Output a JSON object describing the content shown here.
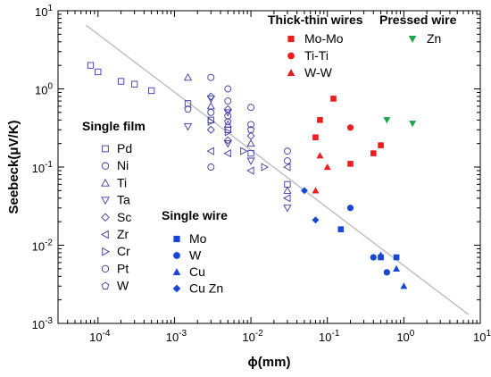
{
  "chart_data": {
    "type": "scatter",
    "xlabel": "ϕ(mm)",
    "ylabel": "Seebeck(μV/K)",
    "xscale": "log",
    "yscale": "log",
    "xlim": [
      3e-05,
      10
    ],
    "ylim": [
      0.001,
      10
    ],
    "x_ticks": [
      {
        "v": 0.0001,
        "m": "10",
        "e": "-4"
      },
      {
        "v": 0.001,
        "m": "10",
        "e": "-3"
      },
      {
        "v": 0.01,
        "m": "10",
        "e": "-2"
      },
      {
        "v": 0.1,
        "m": "10",
        "e": "-1"
      },
      {
        "v": 1,
        "m": "10",
        "e": "0"
      },
      {
        "v": 10,
        "m": "10",
        "e": "1"
      }
    ],
    "y_ticks": [
      {
        "v": 0.001,
        "m": "10",
        "e": "-3"
      },
      {
        "v": 0.01,
        "m": "10",
        "e": "-2"
      },
      {
        "v": 0.1,
        "m": "10",
        "e": "-1"
      },
      {
        "v": 1,
        "m": "10",
        "e": "0"
      },
      {
        "v": 10,
        "m": "10",
        "e": "1"
      }
    ],
    "grid": false,
    "trend_line": {
      "color": "#bdbdbd",
      "points": [
        [
          7e-05,
          6.5
        ],
        [
          7,
          0.0013
        ]
      ]
    },
    "legend_groups": [
      {
        "title": "Single film",
        "placement": "middle-left",
        "entries": [
          "Pd",
          "Ni",
          "Ti",
          "Ta",
          "Sc",
          "Zr",
          "Cr",
          "Pt",
          "W"
        ]
      },
      {
        "title": "Single wire",
        "placement": "lower-middle",
        "entries": [
          "Mo",
          "W",
          "Cu",
          "Cu Zn"
        ]
      },
      {
        "title": "Thick-thin wires",
        "placement": "top-middle",
        "entries": [
          "Mo-Mo",
          "Ti-Ti",
          "W-W"
        ]
      },
      {
        "title": "Pressed wire",
        "placement": "top-right",
        "entries": [
          "Zn"
        ]
      }
    ],
    "series": [
      {
        "name": "Pd",
        "group": "Single film",
        "marker": "square",
        "filled": false,
        "color": "#3a3aa8",
        "points": [
          [
            8e-05,
            2.0
          ],
          [
            0.0001,
            1.65
          ],
          [
            0.0002,
            1.25
          ],
          [
            0.0003,
            1.15
          ],
          [
            0.0005,
            0.95
          ],
          [
            0.0015,
            0.65
          ],
          [
            0.003,
            0.4
          ],
          [
            0.005,
            0.3
          ],
          [
            0.01,
            0.15
          ],
          [
            0.03,
            0.06
          ]
        ]
      },
      {
        "name": "Ni",
        "group": "Single film",
        "marker": "circle",
        "filled": false,
        "color": "#3a3aa8",
        "points": [
          [
            0.003,
            1.4
          ],
          [
            0.005,
            1.0
          ],
          [
            0.003,
            0.5
          ],
          [
            0.005,
            0.45
          ],
          [
            0.01,
            0.58
          ],
          [
            0.003,
            0.1
          ],
          [
            0.03,
            0.16
          ]
        ]
      },
      {
        "name": "Ti",
        "group": "Single film",
        "marker": "triangle-up",
        "filled": false,
        "color": "#3a3aa8",
        "points": [
          [
            0.0015,
            1.4
          ],
          [
            0.003,
            0.6
          ],
          [
            0.005,
            0.35
          ],
          [
            0.01,
            0.2
          ],
          [
            0.03,
            0.05
          ]
        ]
      },
      {
        "name": "Ta",
        "group": "Single film",
        "marker": "triangle-down",
        "filled": false,
        "color": "#3a3aa8",
        "points": [
          [
            0.003,
            0.75
          ],
          [
            0.005,
            0.5
          ],
          [
            0.0015,
            0.33
          ],
          [
            0.005,
            0.2
          ],
          [
            0.01,
            0.12
          ],
          [
            0.03,
            0.03
          ]
        ]
      },
      {
        "name": "Sc",
        "group": "Single film",
        "marker": "diamond",
        "filled": false,
        "color": "#3a3aa8",
        "points": [
          [
            0.003,
            0.8
          ],
          [
            0.005,
            0.55
          ],
          [
            0.003,
            0.3
          ],
          [
            0.005,
            0.22
          ],
          [
            0.01,
            0.25
          ]
        ]
      },
      {
        "name": "Zr",
        "group": "Single film",
        "marker": "triangle-left",
        "filled": false,
        "color": "#3a3aa8",
        "points": [
          [
            0.003,
            0.16
          ],
          [
            0.005,
            0.15
          ],
          [
            0.01,
            0.09
          ],
          [
            0.03,
            0.1
          ],
          [
            0.03,
            0.04
          ]
        ]
      },
      {
        "name": "Cr",
        "group": "Single film",
        "marker": "triangle-right",
        "filled": false,
        "color": "#3a3aa8",
        "points": [
          [
            0.003,
            0.38
          ],
          [
            0.005,
            0.28
          ],
          [
            0.008,
            0.16
          ],
          [
            0.015,
            0.1
          ]
        ]
      },
      {
        "name": "Pt",
        "group": "Single film",
        "marker": "circle",
        "filled": false,
        "color": "#3a3aa8",
        "points": [
          [
            0.005,
            0.7
          ],
          [
            0.01,
            0.35
          ],
          [
            0.03,
            0.12
          ]
        ]
      },
      {
        "name": "W",
        "group": "Single film",
        "marker": "pentagon",
        "filled": false,
        "color": "#3a3aa8",
        "points": [
          [
            0.0015,
            0.55
          ],
          [
            0.005,
            0.38
          ],
          [
            0.01,
            0.3
          ]
        ]
      },
      {
        "name": "Mo",
        "group": "Single wire",
        "marker": "square",
        "filled": true,
        "color": "#1846d6",
        "points": [
          [
            0.15,
            0.016
          ],
          [
            0.5,
            0.007
          ],
          [
            0.8,
            0.007
          ]
        ]
      },
      {
        "name": "W",
        "group": "Single wire",
        "marker": "circle",
        "filled": true,
        "color": "#1846d6",
        "points": [
          [
            0.2,
            0.03
          ],
          [
            0.4,
            0.007
          ],
          [
            0.6,
            0.0045
          ]
        ]
      },
      {
        "name": "Cu",
        "group": "Single wire",
        "marker": "triangle-up",
        "filled": true,
        "color": "#1846d6",
        "points": [
          [
            0.5,
            0.0075
          ],
          [
            0.8,
            0.005
          ],
          [
            1.0,
            0.003
          ]
        ]
      },
      {
        "name": "Cu Zn",
        "group": "Single wire",
        "marker": "diamond",
        "filled": true,
        "color": "#1846d6",
        "points": [
          [
            0.05,
            0.05
          ],
          [
            0.07,
            0.021
          ]
        ]
      },
      {
        "name": "Mo-Mo",
        "group": "Thick-thin wires",
        "marker": "square",
        "filled": true,
        "color": "#ee1c1c",
        "points": [
          [
            0.12,
            0.75
          ],
          [
            0.08,
            0.4
          ],
          [
            0.07,
            0.24
          ],
          [
            0.2,
            0.11
          ],
          [
            0.4,
            0.15
          ],
          [
            0.5,
            0.19
          ]
        ]
      },
      {
        "name": "Ti-Ti",
        "group": "Thick-thin wires",
        "marker": "circle",
        "filled": true,
        "color": "#ee1c1c",
        "points": [
          [
            0.2,
            0.32
          ]
        ]
      },
      {
        "name": "W-W",
        "group": "Thick-thin wires",
        "marker": "triangle-up",
        "filled": true,
        "color": "#ee1c1c",
        "points": [
          [
            0.1,
            0.1
          ],
          [
            0.08,
            0.14
          ],
          [
            0.07,
            0.05
          ]
        ]
      },
      {
        "name": "Zn",
        "group": "Pressed wire",
        "marker": "triangle-down",
        "filled": true,
        "color": "#1aa64a",
        "points": [
          [
            0.6,
            0.4
          ],
          [
            1.3,
            0.36
          ]
        ]
      }
    ]
  }
}
